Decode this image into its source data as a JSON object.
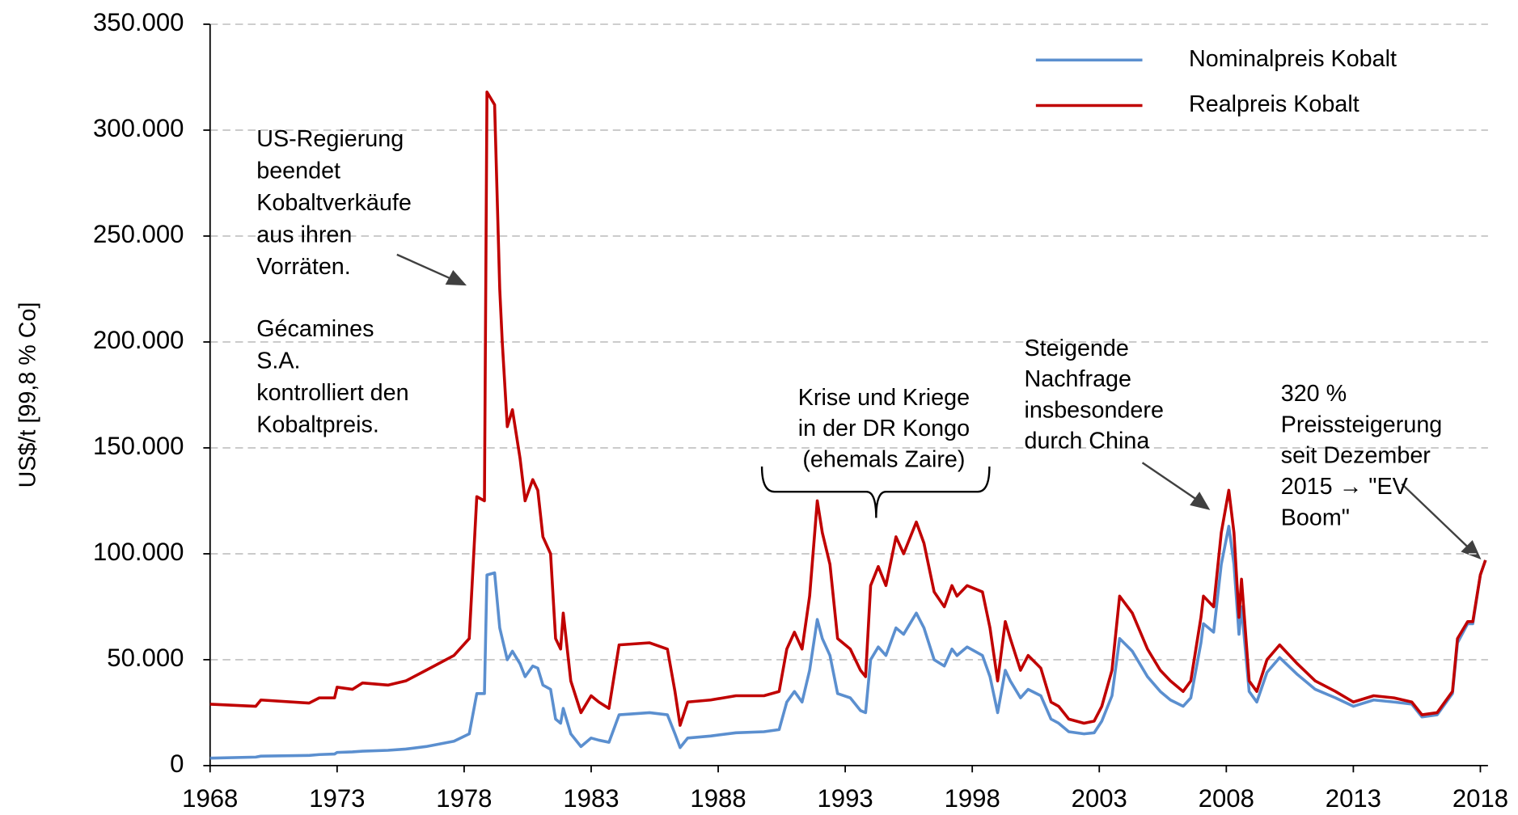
{
  "chart_data": {
    "type": "line",
    "y_label": "US$/t [99,8 % Co]",
    "xlim": [
      1968,
      2018.3
    ],
    "xticks": [
      1968,
      1973,
      1978,
      1983,
      1988,
      1993,
      1998,
      2003,
      2008,
      2013,
      2018
    ],
    "ylim": [
      0,
      350000
    ],
    "yticks": [
      {
        "value": 0,
        "label": "0"
      },
      {
        "value": 50000,
        "label": "50.000"
      },
      {
        "value": 100000,
        "label": "100.000"
      },
      {
        "value": 150000,
        "label": "150.000"
      },
      {
        "value": 200000,
        "label": "200.000"
      },
      {
        "value": 250000,
        "label": "250.000"
      },
      {
        "value": 300000,
        "label": "300.000"
      },
      {
        "value": 350000,
        "label": "350.000"
      }
    ],
    "grid": true,
    "legend": "top-right",
    "x": [
      1968.0,
      1969.8,
      1970.0,
      1971.9,
      1972.3,
      1972.9,
      1973.0,
      1973.6,
      1974.0,
      1975.0,
      1975.7,
      1976.5,
      1977.6,
      1978.2,
      1978.5,
      1978.8,
      1978.9,
      1979.2,
      1979.4,
      1979.5,
      1979.7,
      1979.9,
      1980.2,
      1980.4,
      1980.7,
      1980.9,
      1981.1,
      1981.4,
      1981.6,
      1981.8,
      1981.9,
      1982.2,
      1982.6,
      1983.0,
      1983.3,
      1983.7,
      1984.1,
      1985.3,
      1986.0,
      1986.3,
      1986.5,
      1986.8,
      1987.7,
      1988.7,
      1989.8,
      1990.4,
      1990.7,
      1991.0,
      1991.3,
      1991.6,
      1991.9,
      1992.1,
      1992.4,
      1992.7,
      1993.2,
      1993.6,
      1993.8,
      1994.0,
      1994.3,
      1994.6,
      1995.0,
      1995.3,
      1995.8,
      1996.1,
      1996.5,
      1996.9,
      1997.2,
      1997.4,
      1997.8,
      1998.4,
      1998.7,
      1999.0,
      1999.3,
      1999.5,
      1999.9,
      2000.2,
      2000.7,
      2001.1,
      2001.4,
      2001.8,
      2002.4,
      2002.8,
      2003.1,
      2003.5,
      2003.8,
      2004.3,
      2004.9,
      2005.4,
      2005.8,
      2006.3,
      2006.6,
      2007.0,
      2007.1,
      2007.5,
      2007.8,
      2008.1,
      2008.3,
      2008.5,
      2008.6,
      2008.9,
      2009.2,
      2009.6,
      2010.1,
      2010.8,
      2011.5,
      2012.3,
      2013.0,
      2013.8,
      2014.6,
      2015.3,
      2015.7,
      2016.3,
      2016.9,
      2017.1,
      2017.5,
      2017.7,
      2018.0,
      2018.2
    ],
    "series": [
      {
        "name": "Nominalpreis Kobalt",
        "color": "#5b8fcf",
        "values": [
          3500,
          4000,
          4500,
          4800,
          5200,
          5500,
          6200,
          6500,
          6800,
          7200,
          7800,
          9000,
          11500,
          15000,
          34000,
          34000,
          90000,
          91000,
          65000,
          60000,
          50000,
          54000,
          48000,
          42000,
          47000,
          46000,
          38000,
          36000,
          22000,
          20000,
          27000,
          15000,
          9000,
          13000,
          12000,
          11000,
          24000,
          25000,
          24000,
          15000,
          8500,
          13000,
          14000,
          15500,
          16000,
          17000,
          30000,
          35000,
          30000,
          45000,
          69000,
          60000,
          52000,
          34000,
          32000,
          26000,
          25000,
          50000,
          56000,
          52000,
          65000,
          62000,
          72000,
          65000,
          50000,
          47000,
          55000,
          52000,
          56000,
          52000,
          42000,
          25000,
          45000,
          40000,
          32000,
          36000,
          33000,
          22000,
          20000,
          16000,
          15000,
          15500,
          21000,
          33000,
          60000,
          54000,
          42000,
          35000,
          31000,
          28000,
          32000,
          58000,
          67000,
          63000,
          95000,
          113000,
          95000,
          62000,
          75000,
          35000,
          30000,
          44000,
          51000,
          43000,
          36000,
          32000,
          28000,
          31000,
          30000,
          29000,
          23000,
          24000,
          34000,
          58000,
          67000,
          67000,
          90000,
          97000
        ]
      },
      {
        "name": "Realpreis Kobalt",
        "color": "#c00000",
        "values": [
          29000,
          28000,
          31000,
          29500,
          32000,
          32000,
          37000,
          36000,
          39000,
          38000,
          40000,
          45000,
          52000,
          60000,
          127000,
          125000,
          318000,
          312000,
          225000,
          200000,
          160000,
          168000,
          145000,
          125000,
          135000,
          130000,
          108000,
          100000,
          60000,
          55000,
          72000,
          40000,
          25000,
          33000,
          30000,
          27000,
          57000,
          58000,
          55000,
          35000,
          19000,
          30000,
          31000,
          33000,
          33000,
          35000,
          55000,
          63000,
          55000,
          80000,
          125000,
          110000,
          95000,
          60000,
          55000,
          45000,
          42000,
          85000,
          94000,
          85000,
          108000,
          100000,
          115000,
          105000,
          82000,
          75000,
          85000,
          80000,
          85000,
          82000,
          65000,
          40000,
          68000,
          60000,
          45000,
          52000,
          46000,
          30000,
          28000,
          22000,
          20000,
          21000,
          28000,
          45000,
          80000,
          72000,
          55000,
          45000,
          40000,
          35000,
          40000,
          70000,
          80000,
          75000,
          110000,
          130000,
          110000,
          70000,
          88000,
          40000,
          35000,
          50000,
          57000,
          48000,
          40000,
          35000,
          30000,
          33000,
          32000,
          30000,
          24000,
          25000,
          35000,
          60000,
          68000,
          68000,
          90000,
          97000
        ]
      }
    ],
    "annotations": [
      {
        "lines": [
          "US-Regierung",
          "beendet",
          "Kobaltverkäufe",
          "aus ihren",
          "Vorräten."
        ]
      },
      {
        "lines": [
          "Gécamines",
          "S.A.",
          "kontrolliert den",
          "Kobaltpreis."
        ]
      },
      {
        "lines": [
          "Krise und Kriege",
          "in der DR Kongo",
          "(ehemals Zaire)"
        ]
      },
      {
        "lines": [
          "Steigende",
          "Nachfrage",
          "insbesondere",
          "durch China"
        ]
      },
      {
        "lines": [
          "320 %",
          "Preissteigerung",
          "seit Dezember",
          "2015 → \"EV",
          "Boom\""
        ]
      }
    ]
  }
}
